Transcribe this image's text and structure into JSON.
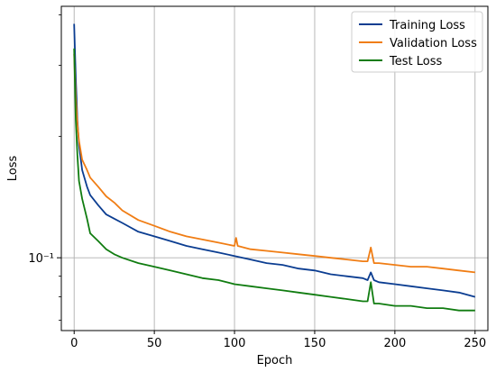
{
  "chart_data": {
    "type": "line",
    "xlabel": "Epoch",
    "ylabel": "Loss",
    "xlim": [
      -8,
      258
    ],
    "ylim": [
      0.066,
      0.42
    ],
    "yscale": "log",
    "grid": true,
    "legend_position": "top-right",
    "x_ticks": [
      0,
      50,
      100,
      150,
      200,
      250
    ],
    "x_tick_labels": [
      "0",
      "50",
      "100",
      "150",
      "200",
      "250"
    ],
    "y_major_ticks": [
      0.1
    ],
    "y_major_tick_labels": [
      "10⁻¹"
    ],
    "y_minor_ticks": [
      0.07,
      0.08,
      0.09,
      0.2,
      0.3,
      0.4
    ],
    "series": [
      {
        "name": "Training Loss",
        "color": "#0b3d91",
        "x": [
          0,
          1,
          2,
          3,
          5,
          8,
          10,
          15,
          20,
          25,
          30,
          40,
          50,
          60,
          70,
          80,
          90,
          100,
          110,
          120,
          130,
          140,
          150,
          160,
          170,
          180,
          183,
          185,
          187,
          190,
          200,
          210,
          220,
          230,
          240,
          250
        ],
        "y": [
          0.38,
          0.28,
          0.22,
          0.19,
          0.165,
          0.15,
          0.143,
          0.135,
          0.128,
          0.125,
          0.122,
          0.116,
          0.113,
          0.11,
          0.107,
          0.105,
          0.103,
          0.101,
          0.099,
          0.097,
          0.096,
          0.094,
          0.093,
          0.091,
          0.09,
          0.089,
          0.088,
          0.092,
          0.088,
          0.087,
          0.086,
          0.085,
          0.084,
          0.083,
          0.082,
          0.08
        ]
      },
      {
        "name": "Validation Loss",
        "color": "#f07d14",
        "x": [
          0,
          1,
          2,
          3,
          5,
          8,
          10,
          15,
          20,
          25,
          30,
          40,
          50,
          60,
          70,
          80,
          90,
          100,
          101,
          102,
          110,
          120,
          130,
          140,
          150,
          160,
          170,
          180,
          183,
          185,
          187,
          190,
          200,
          210,
          220,
          230,
          240,
          250
        ],
        "y": [
          0.32,
          0.25,
          0.215,
          0.195,
          0.175,
          0.165,
          0.158,
          0.15,
          0.142,
          0.137,
          0.131,
          0.124,
          0.12,
          0.116,
          0.113,
          0.111,
          0.109,
          0.107,
          0.112,
          0.107,
          0.105,
          0.104,
          0.103,
          0.102,
          0.101,
          0.1,
          0.099,
          0.098,
          0.098,
          0.106,
          0.097,
          0.097,
          0.096,
          0.095,
          0.095,
          0.094,
          0.093,
          0.092
        ]
      },
      {
        "name": "Test Loss",
        "color": "#107c10",
        "x": [
          0,
          1,
          2,
          3,
          5,
          8,
          10,
          15,
          20,
          25,
          30,
          40,
          50,
          60,
          70,
          80,
          90,
          100,
          110,
          120,
          130,
          140,
          150,
          160,
          170,
          180,
          183,
          185,
          187,
          190,
          200,
          210,
          220,
          230,
          240,
          250
        ],
        "y": [
          0.33,
          0.22,
          0.18,
          0.155,
          0.14,
          0.125,
          0.115,
          0.11,
          0.105,
          0.102,
          0.1,
          0.097,
          0.095,
          0.093,
          0.091,
          0.089,
          0.088,
          0.086,
          0.085,
          0.084,
          0.083,
          0.082,
          0.081,
          0.08,
          0.079,
          0.078,
          0.078,
          0.087,
          0.077,
          0.077,
          0.076,
          0.076,
          0.075,
          0.075,
          0.074,
          0.074
        ]
      }
    ]
  }
}
